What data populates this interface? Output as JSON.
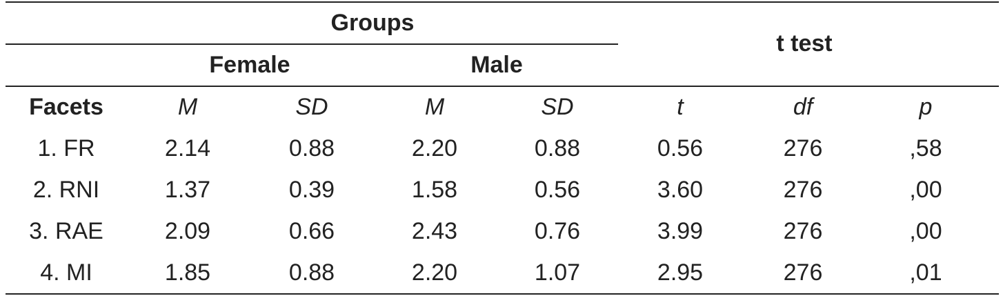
{
  "table": {
    "header": {
      "groups": "Groups",
      "female": "Female",
      "male": "Male",
      "ttest": "t test",
      "columns": [
        "Facets",
        "M",
        "SD",
        "M",
        "SD",
        "t",
        "df",
        "p"
      ]
    },
    "rows": [
      [
        "1. FR",
        "2.14",
        "0.88",
        "2.20",
        "0.88",
        "0.56",
        "276",
        ",58"
      ],
      [
        "2. RNI",
        "1.37",
        "0.39",
        "1.58",
        "0.56",
        "3.60",
        "276",
        ",00"
      ],
      [
        "3. RAE",
        "2.09",
        "0.66",
        "2.43",
        "0.76",
        "3.99",
        "276",
        ",00"
      ],
      [
        "4. MI",
        "1.85",
        "0.88",
        "2.20",
        "1.07",
        "2.95",
        "276",
        ",01"
      ]
    ]
  }
}
